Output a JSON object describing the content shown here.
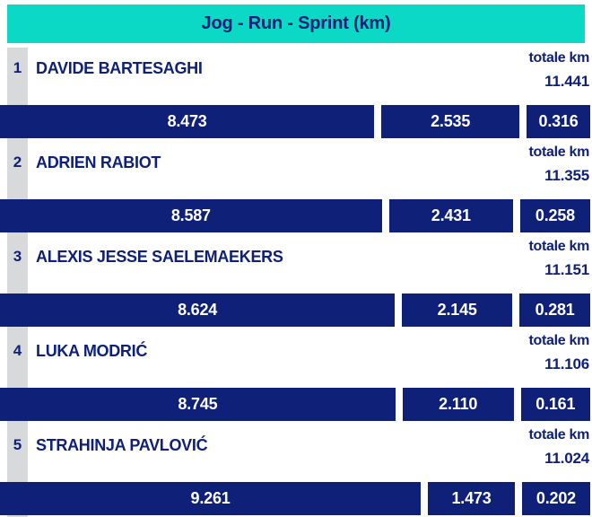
{
  "colors": {
    "accent_teal": "#0bd9c5",
    "navy": "#0e2077",
    "rank_strip_gray": "#d8d9db",
    "bar_text": "#ffffff",
    "background": "#ffffff"
  },
  "header": {
    "title": "Jog - Run - Sprint (km)"
  },
  "labels": {
    "total_km": "totale km"
  },
  "rows": [
    {
      "rank": "1",
      "name": "DAVIDE BARTESAGHI",
      "total": "11.441",
      "segments": [
        {
          "text": "8.473",
          "width_pct": 63.4
        },
        {
          "text": "2.535",
          "width_pct": 23.4
        },
        {
          "text": "0.316"
        }
      ]
    },
    {
      "rank": "2",
      "name": "ADRIEN RABIOT",
      "total": "11.355",
      "segments": [
        {
          "text": "8.587",
          "width_pct": 64.7
        },
        {
          "text": "2.431",
          "width_pct": 21.0
        },
        {
          "text": "0.258"
        }
      ]
    },
    {
      "rank": "3",
      "name": "ALEXIS JESSE SAELEMAEKERS",
      "total": "11.151",
      "segments": [
        {
          "text": "8.624",
          "width_pct": 66.9
        },
        {
          "text": "2.145",
          "width_pct": 18.7
        },
        {
          "text": "0.281"
        }
      ]
    },
    {
      "rank": "4",
      "name": "LUKA MODRIĆ",
      "total": "11.106",
      "segments": [
        {
          "text": "8.745",
          "width_pct": 67.0
        },
        {
          "text": "2.110",
          "width_pct": 18.8
        },
        {
          "text": "0.161"
        }
      ]
    },
    {
      "rank": "5",
      "name": "STRAHINJA PAVLOVIĆ",
      "total": "11.024",
      "segments": [
        {
          "text": "9.261",
          "width_pct": 71.3
        },
        {
          "text": "1.473",
          "width_pct": 14.7
        },
        {
          "text": "0.202"
        }
      ]
    }
  ],
  "chart_data": {
    "type": "bar",
    "subtype": "horizontal-stacked",
    "title": "Jog - Run - Sprint (km)",
    "unit": "km",
    "categories": [
      "DAVIDE BARTESAGHI",
      "ADRIEN RABIOT",
      "ALEXIS JESSE SAELEMAEKERS",
      "LUKA MODRIĆ",
      "STRAHINJA PAVLOVIĆ"
    ],
    "ranks": [
      1,
      2,
      3,
      4,
      5
    ],
    "series": [
      {
        "name": "Jog",
        "values": [
          8.473,
          8.587,
          8.624,
          8.745,
          9.261
        ]
      },
      {
        "name": "Run",
        "values": [
          2.535,
          2.431,
          2.145,
          2.11,
          1.473
        ]
      },
      {
        "name": "Sprint",
        "values": [
          0.316,
          0.258,
          0.281,
          0.161,
          0.202
        ]
      }
    ],
    "totals_km": [
      11.441,
      11.355,
      11.151,
      11.106,
      11.024
    ],
    "total_label": "totale km",
    "data_labels": true,
    "legend_position": "none",
    "grid": false
  }
}
